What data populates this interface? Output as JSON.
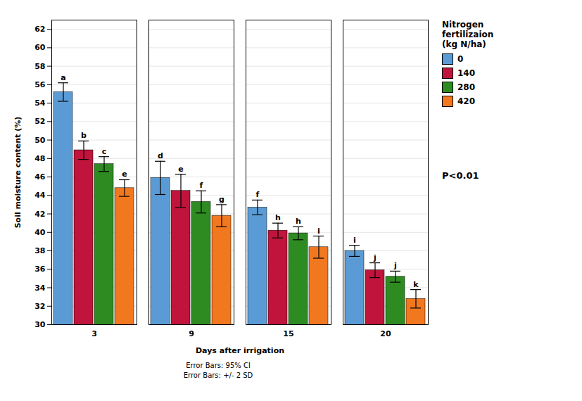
{
  "chart_data": {
    "type": "bar",
    "categories": [
      "3",
      "9",
      "15",
      "20"
    ],
    "series": [
      {
        "name": "0",
        "color": "#5B9BD5",
        "values": [
          55.2,
          45.9,
          42.7,
          38.0
        ],
        "errors": [
          1.0,
          1.8,
          0.8,
          0.6
        ],
        "letters": [
          "a",
          "d",
          "f",
          "i"
        ]
      },
      {
        "name": "140",
        "color": "#C0143C",
        "values": [
          48.9,
          44.5,
          40.2,
          35.9
        ],
        "errors": [
          1.0,
          1.8,
          0.8,
          0.8
        ],
        "letters": [
          "b",
          "e",
          "h",
          "j"
        ]
      },
      {
        "name": "280",
        "color": "#2E8B22",
        "values": [
          47.4,
          43.3,
          39.9,
          35.2
        ],
        "errors": [
          0.8,
          1.2,
          0.7,
          0.6
        ],
        "letters": [
          "c",
          "f",
          "h",
          "j"
        ]
      },
      {
        "name": "420",
        "color": "#F27820",
        "values": [
          44.8,
          41.8,
          38.4,
          32.8
        ],
        "errors": [
          0.9,
          1.2,
          1.2,
          1.0
        ],
        "letters": [
          "e",
          "g",
          "i",
          "k"
        ]
      }
    ],
    "xlabel": "Days after irrigation",
    "ylabel": "Soil moisture content (%)",
    "ylim": [
      30,
      63
    ],
    "yticks": [
      30,
      32,
      34,
      36,
      38,
      40,
      42,
      44,
      46,
      48,
      50,
      52,
      54,
      56,
      58,
      60,
      62
    ],
    "grid": true,
    "legend": "right",
    "legend_title": "Nitrogen\nfertilizaion\n(kg N/ha)",
    "annotation": "P<0.01",
    "footnotes": [
      "Error Bars: 95% CI",
      "Error Bars: +/- 2 SD"
    ]
  }
}
